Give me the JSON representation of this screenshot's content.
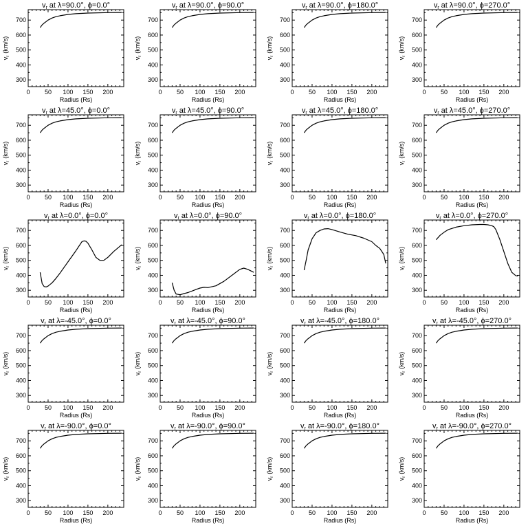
{
  "figure": {
    "xlabel": "Radius (Rs)",
    "ylabel": "v",
    "ylabel_sub": "r",
    "ylabel_unit": "(km/s)",
    "xlim": [
      0,
      240
    ],
    "ylim": [
      255,
      770
    ],
    "xticks": [
      0,
      50,
      100,
      150,
      200
    ],
    "yticks": [
      300,
      400,
      500,
      600,
      700
    ],
    "line_color": "#000000",
    "background": "#ffffff"
  },
  "chart_data": [
    {
      "type": "line",
      "title_var": "v",
      "title_sub": "r",
      "title_at": "at",
      "title_lat": "λ=90.0°",
      "title_lon": "ϕ=0.0°",
      "x": [
        30,
        35,
        40,
        50,
        60,
        70,
        80,
        100,
        120,
        150,
        200,
        235
      ],
      "y": [
        650,
        668,
        680,
        700,
        714,
        723,
        729,
        738,
        743,
        747,
        750,
        751
      ]
    },
    {
      "type": "line",
      "title_var": "v",
      "title_sub": "r",
      "title_at": "at",
      "title_lat": "λ=90.0°",
      "title_lon": "ϕ=90.0°",
      "x": [
        30,
        35,
        40,
        50,
        60,
        70,
        80,
        100,
        120,
        150,
        200,
        235
      ],
      "y": [
        650,
        668,
        680,
        700,
        714,
        723,
        729,
        738,
        743,
        747,
        750,
        751
      ]
    },
    {
      "type": "line",
      "title_var": "v",
      "title_sub": "r",
      "title_at": "at",
      "title_lat": "λ=90.0°",
      "title_lon": "ϕ=180.0°",
      "x": [
        30,
        35,
        40,
        50,
        60,
        70,
        80,
        100,
        120,
        150,
        200,
        235
      ],
      "y": [
        650,
        668,
        680,
        700,
        714,
        723,
        729,
        738,
        743,
        747,
        750,
        751
      ]
    },
    {
      "type": "line",
      "title_var": "v",
      "title_sub": "r",
      "title_at": "at",
      "title_lat": "λ=90.0°",
      "title_lon": "ϕ=270.0°",
      "x": [
        30,
        35,
        40,
        50,
        60,
        70,
        80,
        100,
        120,
        150,
        200,
        235
      ],
      "y": [
        650,
        668,
        680,
        700,
        714,
        723,
        729,
        738,
        743,
        747,
        750,
        751
      ]
    },
    {
      "type": "line",
      "title_var": "v",
      "title_sub": "r",
      "title_at": "at",
      "title_lat": "λ=45.0°",
      "title_lon": "ϕ=0.0°",
      "x": [
        30,
        35,
        40,
        50,
        60,
        70,
        80,
        100,
        120,
        150,
        200,
        235
      ],
      "y": [
        650,
        668,
        680,
        700,
        714,
        723,
        729,
        738,
        743,
        747,
        750,
        751
      ]
    },
    {
      "type": "line",
      "title_var": "v",
      "title_sub": "r",
      "title_at": "at",
      "title_lat": "λ=45.0°",
      "title_lon": "ϕ=90.0°",
      "x": [
        30,
        35,
        40,
        50,
        60,
        70,
        80,
        100,
        120,
        150,
        200,
        235
      ],
      "y": [
        650,
        668,
        680,
        700,
        714,
        723,
        729,
        738,
        743,
        747,
        750,
        751
      ]
    },
    {
      "type": "line",
      "title_var": "v",
      "title_sub": "r",
      "title_at": "at",
      "title_lat": "λ=45.0°",
      "title_lon": "ϕ=180.0°",
      "x": [
        30,
        35,
        40,
        50,
        60,
        70,
        80,
        100,
        120,
        150,
        200,
        235
      ],
      "y": [
        650,
        668,
        680,
        700,
        714,
        723,
        729,
        738,
        743,
        747,
        750,
        751
      ]
    },
    {
      "type": "line",
      "title_var": "v",
      "title_sub": "r",
      "title_at": "at",
      "title_lat": "λ=45.0°",
      "title_lon": "ϕ=270.0°",
      "x": [
        30,
        35,
        40,
        50,
        60,
        70,
        80,
        100,
        120,
        150,
        200,
        235
      ],
      "y": [
        650,
        668,
        680,
        700,
        714,
        723,
        729,
        738,
        743,
        747,
        750,
        751
      ]
    },
    {
      "type": "line",
      "title_var": "v",
      "title_sub": "r",
      "title_at": "at",
      "title_lat": "λ=0.0°",
      "title_lon": "ϕ=0.0°",
      "x": [
        30,
        35,
        40,
        45,
        50,
        60,
        70,
        80,
        100,
        120,
        135,
        140,
        145,
        150,
        160,
        170,
        180,
        190,
        200,
        215,
        235
      ],
      "y": [
        420,
        345,
        325,
        322,
        328,
        350,
        380,
        415,
        490,
        565,
        625,
        630,
        628,
        615,
        570,
        520,
        500,
        500,
        520,
        560,
        605
      ]
    },
    {
      "type": "line",
      "title_var": "v",
      "title_sub": "r",
      "title_at": "at",
      "title_lat": "λ=0.0°",
      "title_lon": "ϕ=90.0°",
      "x": [
        30,
        35,
        40,
        50,
        60,
        70,
        80,
        90,
        100,
        110,
        120,
        140,
        160,
        180,
        200,
        210,
        220,
        235
      ],
      "y": [
        350,
        300,
        275,
        270,
        278,
        285,
        295,
        305,
        315,
        320,
        318,
        330,
        360,
        400,
        440,
        448,
        440,
        420
      ]
    },
    {
      "type": "line",
      "title_var": "v",
      "title_sub": "r",
      "title_at": "at",
      "title_lat": "λ=0.0°",
      "title_lon": "ϕ=180.0°",
      "x": [
        30,
        35,
        40,
        50,
        60,
        70,
        80,
        90,
        100,
        120,
        140,
        160,
        180,
        200,
        210,
        220,
        230,
        235
      ],
      "y": [
        435,
        500,
        570,
        645,
        685,
        700,
        710,
        712,
        706,
        690,
        675,
        665,
        648,
        625,
        600,
        580,
        540,
        480
      ]
    },
    {
      "type": "line",
      "title_var": "v",
      "title_sub": "r",
      "title_at": "at",
      "title_lat": "λ=0.0°",
      "title_lon": "ϕ=270.0°",
      "x": [
        30,
        40,
        50,
        60,
        80,
        100,
        120,
        140,
        150,
        160,
        170,
        175,
        180,
        190,
        200,
        210,
        220,
        230,
        235
      ],
      "y": [
        638,
        668,
        688,
        705,
        722,
        732,
        738,
        740,
        740,
        738,
        732,
        725,
        705,
        640,
        560,
        480,
        420,
        398,
        395
      ]
    },
    {
      "type": "line",
      "title_var": "v",
      "title_sub": "r",
      "title_at": "at",
      "title_lat": "λ=-45.0°",
      "title_lon": "ϕ=0.0°",
      "x": [
        30,
        35,
        40,
        50,
        60,
        70,
        80,
        100,
        120,
        150,
        200,
        235
      ],
      "y": [
        650,
        668,
        680,
        700,
        714,
        723,
        729,
        738,
        743,
        747,
        750,
        751
      ]
    },
    {
      "type": "line",
      "title_var": "v",
      "title_sub": "r",
      "title_at": "at",
      "title_lat": "λ=-45.0°",
      "title_lon": "ϕ=90.0°",
      "x": [
        30,
        35,
        40,
        50,
        60,
        70,
        80,
        100,
        120,
        150,
        200,
        235
      ],
      "y": [
        650,
        668,
        680,
        700,
        714,
        723,
        729,
        738,
        743,
        747,
        750,
        751
      ]
    },
    {
      "type": "line",
      "title_var": "v",
      "title_sub": "r",
      "title_at": "at",
      "title_lat": "λ=-45.0°",
      "title_lon": "ϕ=180.0°",
      "x": [
        30,
        35,
        40,
        50,
        60,
        70,
        80,
        100,
        120,
        150,
        200,
        235
      ],
      "y": [
        650,
        668,
        680,
        700,
        714,
        723,
        729,
        738,
        743,
        747,
        750,
        751
      ]
    },
    {
      "type": "line",
      "title_var": "v",
      "title_sub": "r",
      "title_at": "at",
      "title_lat": "λ=-45.0°",
      "title_lon": "ϕ=270.0°",
      "x": [
        30,
        35,
        40,
        50,
        60,
        70,
        80,
        100,
        120,
        150,
        200,
        235
      ],
      "y": [
        650,
        668,
        680,
        700,
        714,
        723,
        729,
        738,
        743,
        747,
        750,
        751
      ]
    },
    {
      "type": "line",
      "title_var": "v",
      "title_sub": "r",
      "title_at": "at",
      "title_lat": "λ=-90.0°",
      "title_lon": "ϕ=0.0°",
      "x": [
        30,
        35,
        40,
        50,
        60,
        70,
        80,
        100,
        120,
        150,
        200,
        235
      ],
      "y": [
        650,
        668,
        680,
        700,
        714,
        723,
        729,
        738,
        743,
        747,
        750,
        751
      ]
    },
    {
      "type": "line",
      "title_var": "v",
      "title_sub": "r",
      "title_at": "at",
      "title_lat": "λ=-90.0°",
      "title_lon": "ϕ=90.0°",
      "x": [
        30,
        35,
        40,
        50,
        60,
        70,
        80,
        100,
        120,
        150,
        200,
        235
      ],
      "y": [
        650,
        668,
        680,
        700,
        714,
        723,
        729,
        738,
        743,
        747,
        750,
        751
      ]
    },
    {
      "type": "line",
      "title_var": "v",
      "title_sub": "r",
      "title_at": "at",
      "title_lat": "λ=-90.0°",
      "title_lon": "ϕ=180.0°",
      "x": [
        30,
        35,
        40,
        50,
        60,
        70,
        80,
        100,
        120,
        150,
        200,
        235
      ],
      "y": [
        650,
        668,
        680,
        700,
        714,
        723,
        729,
        738,
        743,
        747,
        750,
        751
      ]
    },
    {
      "type": "line",
      "title_var": "v",
      "title_sub": "r",
      "title_at": "at",
      "title_lat": "λ=-90.0°",
      "title_lon": "ϕ=270.0°",
      "x": [
        30,
        35,
        40,
        50,
        60,
        70,
        80,
        100,
        120,
        150,
        200,
        235
      ],
      "y": [
        650,
        668,
        680,
        700,
        714,
        723,
        729,
        738,
        743,
        747,
        750,
        751
      ]
    }
  ]
}
